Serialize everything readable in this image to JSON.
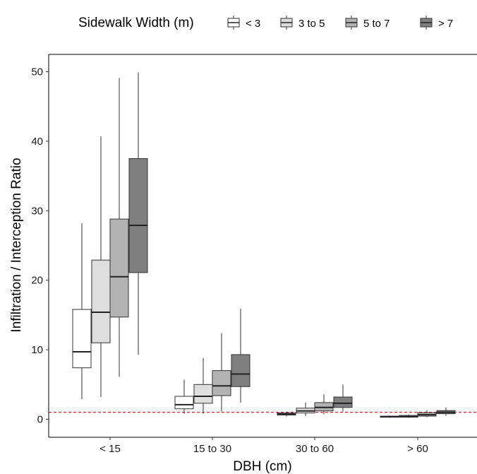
{
  "chart_data": {
    "type": "boxplot",
    "xlabel": "DBH (cm)",
    "ylabel": "Infiltration / Interception Ratio",
    "ylim": [
      -2.5,
      52.5
    ],
    "yticks": [
      0,
      10,
      20,
      30,
      40,
      50
    ],
    "grid": false,
    "legend_position": "top",
    "legend": {
      "title": "Sidewalk Width (m)",
      "entries": [
        "< 3",
        "3 to 5",
        "5 to 7",
        "> 7"
      ]
    },
    "reference_line": {
      "y": 1,
      "color": "#e8242a",
      "style": "dashed"
    },
    "categories": [
      "< 15",
      "15 to 30",
      "30 to 60",
      "> 60"
    ],
    "series": [
      {
        "name": "< 3",
        "color": "#ffffff",
        "boxes": [
          {
            "min": 2.9,
            "q1": 7.4,
            "median": 9.7,
            "q3": 15.8,
            "max": 28.2
          },
          {
            "min": 0.8,
            "q1": 1.5,
            "median": 2.1,
            "q3": 3.3,
            "max": 5.7
          },
          {
            "min": 0.4,
            "q1": 0.6,
            "median": 0.75,
            "q3": 0.9,
            "max": 1.1
          },
          {
            "min": 0.2,
            "q1": 0.3,
            "median": 0.35,
            "q3": 0.45,
            "max": 0.55
          }
        ]
      },
      {
        "name": "3 to 5",
        "color": "#dedede",
        "boxes": [
          {
            "min": 3.2,
            "q1": 11.0,
            "median": 15.4,
            "q3": 22.9,
            "max": 40.7
          },
          {
            "min": 0.8,
            "q1": 2.3,
            "median": 3.3,
            "q3": 5.0,
            "max": 8.8
          },
          {
            "min": 0.5,
            "q1": 0.9,
            "median": 1.2,
            "q3": 1.6,
            "max": 2.4
          },
          {
            "min": 0.2,
            "q1": 0.3,
            "median": 0.4,
            "q3": 0.55,
            "max": 0.7
          }
        ]
      },
      {
        "name": "5 to 7",
        "color": "#b3b3b3",
        "boxes": [
          {
            "min": 6.1,
            "q1": 14.7,
            "median": 20.5,
            "q3": 28.8,
            "max": 49.1
          },
          {
            "min": 1.1,
            "q1": 3.4,
            "median": 4.8,
            "q3": 7.0,
            "max": 12.4
          },
          {
            "min": 0.7,
            "q1": 1.2,
            "median": 1.7,
            "q3": 2.4,
            "max": 3.6
          },
          {
            "min": 0.3,
            "q1": 0.45,
            "median": 0.65,
            "q3": 0.95,
            "max": 1.3
          }
        ]
      },
      {
        "name": "> 7",
        "color": "#7f7f7f",
        "boxes": [
          {
            "min": 9.3,
            "q1": 21.1,
            "median": 27.9,
            "q3": 37.5,
            "max": 49.9
          },
          {
            "min": 2.4,
            "q1": 4.7,
            "median": 6.5,
            "q3": 9.3,
            "max": 15.9
          },
          {
            "min": 1.1,
            "q1": 1.7,
            "median": 2.3,
            "q3": 3.2,
            "max": 5.0
          },
          {
            "min": 0.5,
            "q1": 0.8,
            "median": 1.0,
            "q3": 1.25,
            "max": 1.7
          }
        ]
      }
    ]
  }
}
